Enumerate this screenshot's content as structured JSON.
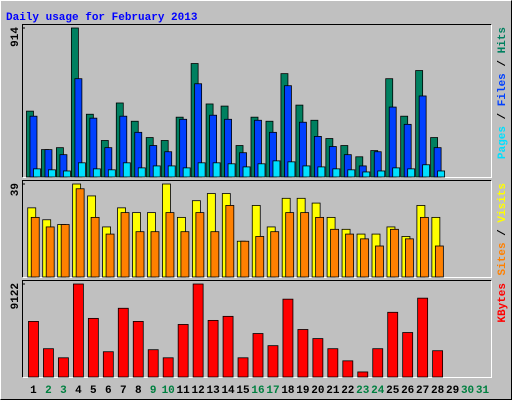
{
  "chart_data": {
    "type": "bar",
    "title": "Daily usage for February 2013",
    "categories": [
      "1",
      "2",
      "3",
      "4",
      "5",
      "6",
      "7",
      "8",
      "9",
      "10",
      "11",
      "12",
      "13",
      "14",
      "15",
      "16",
      "17",
      "18",
      "19",
      "20",
      "21",
      "22",
      "23",
      "24",
      "25",
      "26",
      "27",
      "28",
      "29",
      "30",
      "31"
    ],
    "category_colors": [
      "#000000",
      "#008040",
      "#008040",
      "#000000",
      "#000000",
      "#000000",
      "#000000",
      "#000000",
      "#008040",
      "#008040",
      "#000000",
      "#000000",
      "#000000",
      "#000000",
      "#000000",
      "#008040",
      "#008040",
      "#000000",
      "#000000",
      "#000000",
      "#000000",
      "#000000",
      "#008040",
      "#008040",
      "#000000",
      "#000000",
      "#000000",
      "#000000",
      "#000000",
      "#008040",
      "#008040"
    ],
    "legend_separator": " / ",
    "panels": [
      {
        "ylim": [
          0,
          914
        ],
        "yticks": [
          914
        ],
        "series": [
          {
            "name": "Hits",
            "color": "#008060",
            "values": [
              404,
              168,
              180,
              914,
              385,
              224,
              454,
              342,
              242,
              224,
              367,
              696,
              448,
              435,
              193,
              367,
              342,
              634,
              441,
              348,
              236,
              193,
              124,
              162,
              603,
              373,
              653,
              242,
              null,
              null,
              null
            ]
          },
          {
            "name": "Files",
            "color": "#0040ff",
            "values": [
              373,
              168,
              137,
              603,
              361,
              180,
              373,
              274,
              193,
              155,
              354,
              572,
              379,
              354,
              149,
              348,
              274,
              560,
              336,
              249,
              187,
              137,
              68,
              155,
              429,
              323,
              497,
              180,
              null,
              null,
              null
            ]
          },
          {
            "name": "Pages",
            "color": "#00e0ff",
            "values": [
              50,
              44,
              37,
              87,
              50,
              44,
              87,
              56,
              68,
              68,
              56,
              87,
              87,
              81,
              62,
              81,
              99,
              93,
              68,
              62,
              50,
              44,
              31,
              37,
              56,
              50,
              75,
              37,
              null,
              null,
              null
            ]
          }
        ],
        "legend_order": [
          2,
          1,
          0
        ]
      },
      {
        "ylim": [
          0,
          39
        ],
        "yticks": [
          39
        ],
        "series": [
          {
            "name": "Visits",
            "color": "#ffff00",
            "values": [
              29,
              24,
              22,
              39,
              34,
              21,
              29,
              27,
              27,
              39,
              25,
              32,
              35,
              35,
              15,
              30,
              21,
              33,
              33,
              31,
              25,
              20,
              18,
              18,
              21,
              17,
              30,
              25,
              null,
              null,
              null
            ]
          },
          {
            "name": "Sites",
            "color": "#ff8000",
            "values": [
              25,
              21,
              22,
              37,
              25,
              18,
              27,
              19,
              19,
              27,
              19,
              27,
              19,
              30,
              15,
              17,
              19,
              27,
              27,
              25,
              20,
              18,
              16,
              13,
              20,
              16,
              25,
              13,
              null,
              null,
              null
            ]
          }
        ],
        "legend_order": [
          1,
          0
        ]
      },
      {
        "ylim": [
          0,
          9122
        ],
        "yticks": [
          9122
        ],
        "series": [
          {
            "name": "KBytes",
            "color": "#ff0000",
            "values": [
              5453,
              2776,
              1884,
              9122,
              5750,
              2479,
              6742,
              5453,
              2677,
              1884,
              5155,
              9122,
              5552,
              5949,
              1884,
              4264,
              3074,
              7635,
              4660,
              3768,
              2776,
              1586,
              496,
              2776,
              6346,
              4363,
              7734,
              2578,
              null,
              null,
              null
            ]
          }
        ],
        "legend_order": [
          0
        ]
      }
    ]
  }
}
